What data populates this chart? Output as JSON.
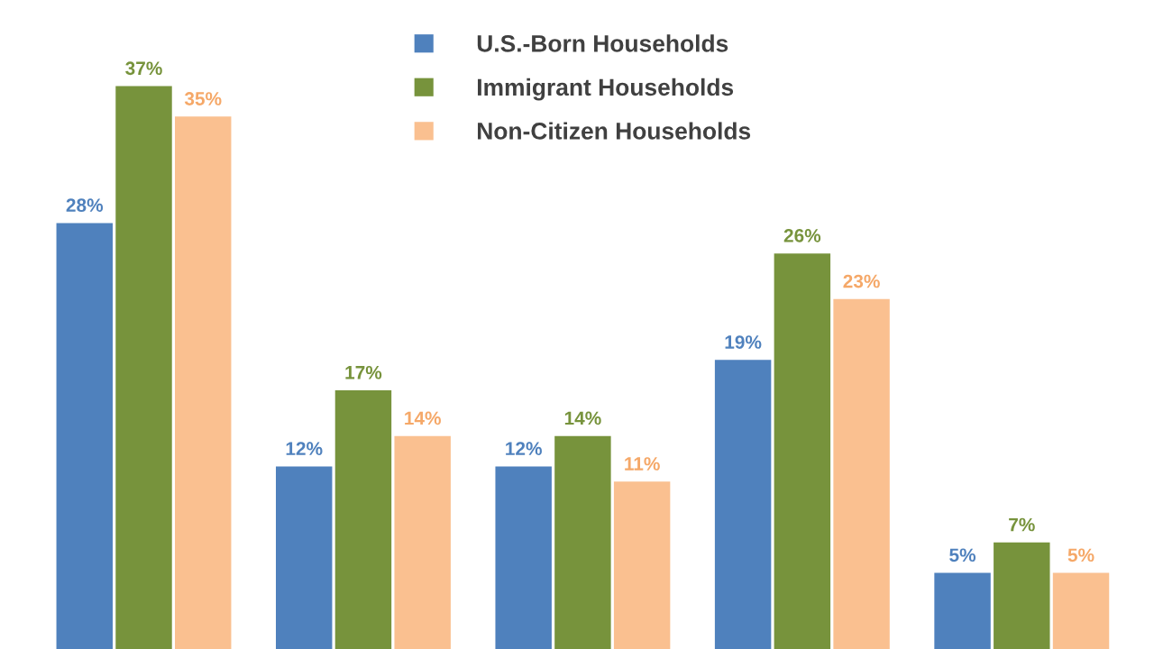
{
  "chart_data": {
    "type": "bar",
    "categories": [
      null,
      null,
      null,
      null,
      null
    ],
    "series": [
      {
        "name": "U.S.-Born Households",
        "color": "#4f81bd",
        "values": [
          28,
          12,
          12,
          19,
          5
        ],
        "value_labels": [
          "28%",
          "12%",
          "12%",
          "19%",
          "5%"
        ]
      },
      {
        "name": "Immigrant Households",
        "color": "#77933c",
        "values": [
          37,
          17,
          14,
          26,
          7
        ],
        "value_labels": [
          "37%",
          "17%",
          "14%",
          "26%",
          "7%"
        ]
      },
      {
        "name": "Non-Citizen Households",
        "color": "#fac090",
        "values": [
          35,
          14,
          11,
          23,
          5
        ],
        "value_labels": [
          "35%",
          "14%",
          "11%",
          "23%",
          "5%"
        ]
      }
    ],
    "legend": "top",
    "grid": false
  }
}
